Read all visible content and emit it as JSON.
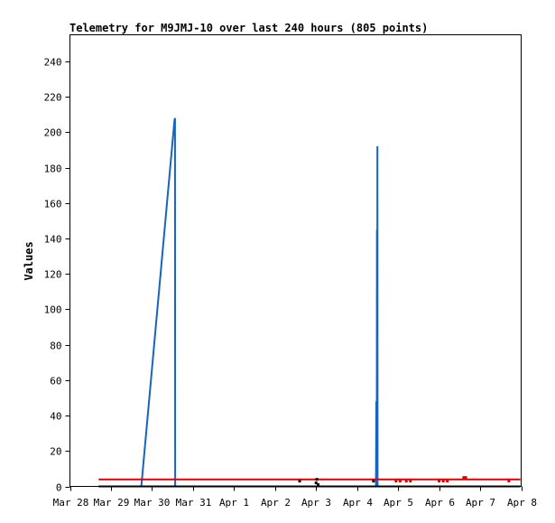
{
  "chart_data": {
    "type": "line",
    "title": "Telemetry for M9JMJ-10 over last 240 hours (805 points)",
    "xlabel": "",
    "ylabel": "Values",
    "x_unit": "days since Mar 28 00:00",
    "xlim": [
      0,
      11
    ],
    "ylim": [
      0,
      255
    ],
    "y_ticks": [
      0,
      20,
      40,
      60,
      80,
      100,
      120,
      140,
      160,
      180,
      200,
      220,
      240
    ],
    "x_ticks": [
      {
        "x": 0,
        "label": "Mar 28"
      },
      {
        "x": 1,
        "label": "Mar 29"
      },
      {
        "x": 2,
        "label": "Mar 30"
      },
      {
        "x": 3,
        "label": "Mar 31"
      },
      {
        "x": 4,
        "label": "Apr 1"
      },
      {
        "x": 5,
        "label": "Apr 2"
      },
      {
        "x": 6,
        "label": "Apr 3"
      },
      {
        "x": 7,
        "label": "Apr 4"
      },
      {
        "x": 8,
        "label": "Apr 5"
      },
      {
        "x": 9,
        "label": "Apr 6"
      },
      {
        "x": 10,
        "label": "Apr 7"
      },
      {
        "x": 11,
        "label": "Apr 8"
      }
    ],
    "grid": false,
    "legend": "none",
    "series": [
      {
        "color": "#1565c0",
        "kind": "line",
        "points": [
          [
            1.74,
            0
          ],
          [
            2.55,
            207
          ],
          [
            2.56,
            208
          ],
          [
            2.565,
            0
          ],
          [
            7.46,
            0
          ],
          [
            7.47,
            48
          ],
          [
            7.48,
            0
          ],
          [
            7.485,
            145
          ],
          [
            7.49,
            0
          ],
          [
            7.495,
            192
          ],
          [
            7.5,
            0
          ]
        ]
      },
      {
        "color": "#e00000",
        "kind": "line",
        "points": [
          [
            0.7,
            4
          ],
          [
            10.98,
            4
          ]
        ]
      },
      {
        "color": "#e00000",
        "kind": "markers",
        "points": [
          [
            7.95,
            3
          ],
          [
            8.05,
            3
          ],
          [
            8.2,
            3
          ],
          [
            8.3,
            3
          ],
          [
            9.0,
            3
          ],
          [
            9.1,
            3
          ],
          [
            9.2,
            3
          ],
          [
            9.6,
            5
          ],
          [
            9.65,
            5
          ],
          [
            10.7,
            3
          ]
        ]
      },
      {
        "color": "#000000",
        "kind": "line",
        "points": [
          [
            0.7,
            0
          ],
          [
            10.98,
            0
          ]
        ]
      },
      {
        "color": "#000000",
        "kind": "markers",
        "points": [
          [
            5.6,
            3
          ],
          [
            6.0,
            2
          ],
          [
            6.02,
            4
          ],
          [
            6.05,
            1
          ],
          [
            7.4,
            3
          ]
        ]
      }
    ]
  }
}
